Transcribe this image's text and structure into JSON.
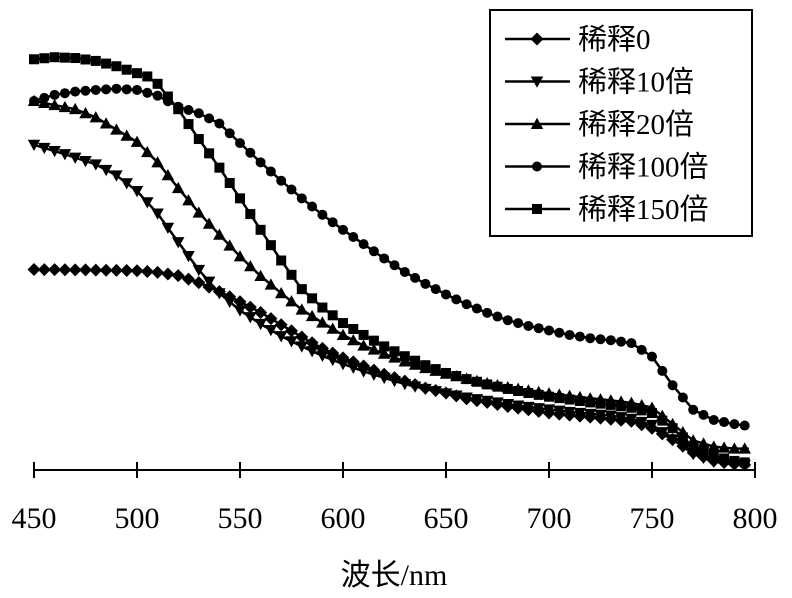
{
  "chart_data": {
    "type": "line",
    "title": "",
    "xlabel": "波长/nm",
    "ylabel": "",
    "xlim": [
      450,
      800
    ],
    "ylim": [
      0,
      1
    ],
    "xticks": [
      450,
      500,
      550,
      600,
      650,
      700,
      750,
      800
    ],
    "y_axis_shown": false,
    "grid": false,
    "legend_position": "top-right",
    "series": [
      {
        "name": "稀释0",
        "marker": "diamond",
        "x": [
          450,
          475,
          500,
          510,
          520,
          530,
          540,
          550,
          560,
          570,
          580,
          590,
          600,
          610,
          620,
          630,
          640,
          650,
          660,
          670,
          680,
          690,
          700,
          710,
          720,
          730,
          740,
          750,
          760,
          770,
          780,
          790,
          797
        ],
        "y": [
          0.478,
          0.477,
          0.475,
          0.471,
          0.463,
          0.446,
          0.424,
          0.399,
          0.373,
          0.343,
          0.313,
          0.285,
          0.262,
          0.242,
          0.222,
          0.205,
          0.188,
          0.176,
          0.162,
          0.153,
          0.143,
          0.135,
          0.127,
          0.122,
          0.117,
          0.112,
          0.107,
          0.09,
          0.062,
          0.03,
          0.01,
          0.002,
          0.0
        ]
      },
      {
        "name": "稀释10倍",
        "marker": "triangle-down",
        "x": [
          450,
          465,
          480,
          490,
          500,
          510,
          520,
          530,
          540,
          550,
          560,
          570,
          580,
          590,
          600,
          610,
          620,
          630,
          640,
          650,
          660,
          670,
          680,
          690,
          700,
          710,
          720,
          730,
          740,
          750,
          760,
          770,
          780,
          790,
          797
        ],
        "y": [
          0.783,
          0.76,
          0.735,
          0.708,
          0.67,
          0.615,
          0.545,
          0.477,
          0.42,
          0.378,
          0.345,
          0.315,
          0.29,
          0.267,
          0.247,
          0.229,
          0.213,
          0.198,
          0.186,
          0.175,
          0.165,
          0.157,
          0.149,
          0.142,
          0.136,
          0.13,
          0.125,
          0.121,
          0.113,
          0.098,
          0.063,
          0.027,
          0.008,
          0.002,
          0.0
        ]
      },
      {
        "name": "稀释20倍",
        "marker": "triangle-up",
        "x": [
          450,
          470,
          480,
          490,
          500,
          510,
          520,
          530,
          540,
          550,
          560,
          570,
          580,
          590,
          600,
          610,
          620,
          630,
          640,
          650,
          660,
          670,
          680,
          690,
          700,
          710,
          720,
          730,
          740,
          750,
          760,
          770,
          780,
          790,
          797
        ],
        "y": [
          0.89,
          0.87,
          0.85,
          0.82,
          0.79,
          0.74,
          0.677,
          0.617,
          0.563,
          0.51,
          0.462,
          0.42,
          0.38,
          0.348,
          0.318,
          0.292,
          0.272,
          0.253,
          0.237,
          0.223,
          0.211,
          0.2,
          0.19,
          0.182,
          0.175,
          0.169,
          0.163,
          0.158,
          0.152,
          0.14,
          0.1,
          0.06,
          0.045,
          0.04,
          0.04
        ]
      },
      {
        "name": "稀释100倍",
        "marker": "circle",
        "x": [
          450,
          460,
          470,
          480,
          490,
          500,
          510,
          520,
          530,
          540,
          550,
          560,
          570,
          580,
          590,
          600,
          610,
          620,
          630,
          640,
          650,
          660,
          670,
          680,
          690,
          700,
          710,
          720,
          730,
          740,
          750,
          760,
          770,
          780,
          790,
          797
        ],
        "y": [
          0.89,
          0.905,
          0.913,
          0.917,
          0.92,
          0.917,
          0.903,
          0.876,
          0.86,
          0.835,
          0.787,
          0.74,
          0.695,
          0.652,
          0.612,
          0.575,
          0.54,
          0.505,
          0.472,
          0.443,
          0.417,
          0.393,
          0.372,
          0.354,
          0.34,
          0.329,
          0.318,
          0.31,
          0.305,
          0.298,
          0.265,
          0.195,
          0.135,
          0.11,
          0.1,
          0.095
        ]
      },
      {
        "name": "稀释150倍",
        "marker": "square",
        "x": [
          450,
          460,
          470,
          480,
          490,
          500,
          505,
          510,
          520,
          530,
          540,
          550,
          560,
          570,
          580,
          590,
          600,
          610,
          620,
          630,
          640,
          650,
          660,
          670,
          680,
          690,
          700,
          710,
          720,
          730,
          740,
          750,
          760,
          770,
          780,
          790,
          797
        ],
        "y": [
          0.992,
          0.997,
          0.995,
          0.988,
          0.975,
          0.958,
          0.95,
          0.932,
          0.87,
          0.797,
          0.727,
          0.652,
          0.575,
          0.5,
          0.43,
          0.385,
          0.347,
          0.318,
          0.29,
          0.266,
          0.244,
          0.225,
          0.21,
          0.197,
          0.186,
          0.176,
          0.167,
          0.16,
          0.153,
          0.147,
          0.14,
          0.127,
          0.09,
          0.045,
          0.022,
          0.01,
          0.005
        ]
      }
    ]
  }
}
